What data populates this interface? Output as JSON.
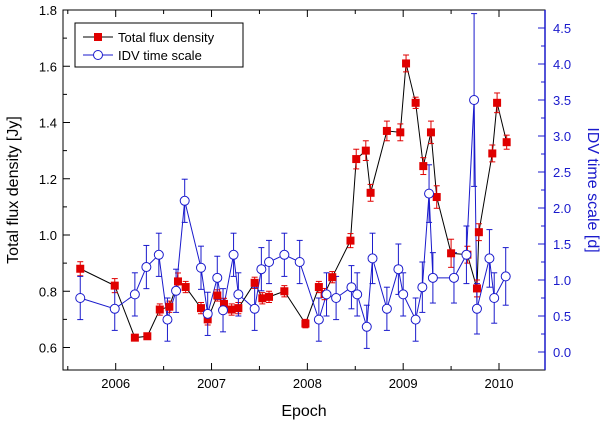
{
  "chart_data": {
    "type": "line",
    "title": "",
    "xlabel": "Epoch",
    "ylabel_left": "Total flux density [Jy]",
    "ylabel_right": "IDV time scale [d]",
    "xlim": [
      2005.45,
      2010.48
    ],
    "ylim_left": [
      0.52,
      1.8
    ],
    "ylim_right": [
      -0.25,
      4.75
    ],
    "x_ticks": [
      2006,
      2007,
      2008,
      2009,
      2010
    ],
    "x_tick_labels": [
      "2006",
      "2007",
      "2008",
      "2009",
      "2010"
    ],
    "y_left_ticks": [
      0.6,
      0.8,
      1.0,
      1.2,
      1.4,
      1.6,
      1.8
    ],
    "y_left_tick_labels": [
      "0.6",
      "0.8",
      "1.0",
      "1.2",
      "1.4",
      "1.6",
      "1.8"
    ],
    "y_right_ticks": [
      0.0,
      0.5,
      1.0,
      1.5,
      2.0,
      2.5,
      3.0,
      3.5,
      4.0,
      4.5
    ],
    "y_right_tick_labels": [
      "0.0",
      "0.5",
      "1.0",
      "1.5",
      "2.0",
      "2.5",
      "3.0",
      "3.5",
      "4.0",
      "4.5"
    ],
    "legend_position": "top-left",
    "colors": {
      "flux": "#e00000",
      "idv": "#1a1acc",
      "axis_right": "#1a1acc"
    },
    "series": [
      {
        "name": "Total flux density",
        "axis": "left",
        "marker": "filled-square",
        "line": "black",
        "x": [
          2005.63,
          2005.99,
          2006.2,
          2006.33,
          2006.46,
          2006.56,
          2006.65,
          2006.73,
          2006.89,
          2006.96,
          2007.06,
          2007.13,
          2007.21,
          2007.28,
          2007.45,
          2007.53,
          2007.6,
          2007.76,
          2007.98,
          2008.12,
          2008.18,
          2008.26,
          2008.45,
          2008.51,
          2008.61,
          2008.66,
          2008.83,
          2008.97,
          2009.03,
          2009.13,
          2009.21,
          2009.29,
          2009.35,
          2009.5,
          2009.67,
          2009.77,
          2009.79,
          2009.93,
          2009.98,
          2010.08
        ],
        "y": [
          0.88,
          0.82,
          0.635,
          0.64,
          0.735,
          0.745,
          0.835,
          0.815,
          0.74,
          0.7,
          0.785,
          0.755,
          0.735,
          0.74,
          0.83,
          0.775,
          0.78,
          0.8,
          0.685,
          0.815,
          0.79,
          0.85,
          0.98,
          1.27,
          1.3,
          1.15,
          1.37,
          1.365,
          1.61,
          1.47,
          1.245,
          1.365,
          1.135,
          0.935,
          0.93,
          0.81,
          1.01,
          1.29,
          1.47,
          1.33
        ],
        "error": [
          0.025,
          0.025,
          0.01,
          0.01,
          0.02,
          0.02,
          0.03,
          0.02,
          0.02,
          0.02,
          0.02,
          0.02,
          0.02,
          0.02,
          0.02,
          0.02,
          0.02,
          0.02,
          0.015,
          0.02,
          0.02,
          0.02,
          0.025,
          0.035,
          0.035,
          0.03,
          0.035,
          0.03,
          0.03,
          0.02,
          0.03,
          0.04,
          0.04,
          0.05,
          0.03,
          0.03,
          0.03,
          0.03,
          0.035,
          0.025
        ]
      },
      {
        "name": "IDV time scale",
        "axis": "right",
        "marker": "open-circle",
        "line": "blue",
        "x": [
          2005.63,
          2005.99,
          2006.2,
          2006.32,
          2006.45,
          2006.54,
          2006.63,
          2006.72,
          2006.89,
          2006.96,
          2007.06,
          2007.12,
          2007.23,
          2007.28,
          2007.45,
          2007.52,
          2007.6,
          2007.76,
          2007.92,
          2008.12,
          2008.2,
          2008.3,
          2008.46,
          2008.52,
          2008.62,
          2008.68,
          2008.83,
          2008.95,
          2009.0,
          2009.13,
          2009.2,
          2009.27,
          2009.31,
          2009.53,
          2009.66,
          2009.74,
          2009.77,
          2009.9,
          2009.95,
          2010.07
        ],
        "y": [
          0.75,
          0.6,
          0.8,
          1.18,
          1.35,
          0.45,
          0.85,
          2.1,
          1.17,
          0.53,
          1.03,
          0.58,
          1.35,
          0.8,
          0.6,
          1.15,
          1.25,
          1.35,
          1.25,
          0.45,
          0.8,
          0.75,
          0.9,
          0.8,
          0.35,
          1.3,
          0.6,
          1.15,
          0.8,
          0.45,
          0.9,
          2.2,
          1.03,
          1.03,
          1.35,
          3.5,
          0.6,
          1.3,
          0.75,
          1.05
        ],
        "error": [
          0.3,
          0.3,
          0.3,
          0.3,
          0.3,
          0.3,
          0.3,
          0.3,
          0.3,
          0.3,
          0.3,
          0.3,
          0.3,
          0.3,
          0.3,
          0.3,
          0.3,
          0.3,
          0.3,
          0.3,
          0.3,
          0.3,
          0.3,
          0.3,
          0.3,
          0.35,
          0.3,
          0.35,
          0.3,
          0.3,
          0.35,
          0.4,
          0.35,
          0.35,
          0.4,
          1.2,
          0.35,
          0.4,
          0.35,
          0.4
        ]
      }
    ]
  }
}
